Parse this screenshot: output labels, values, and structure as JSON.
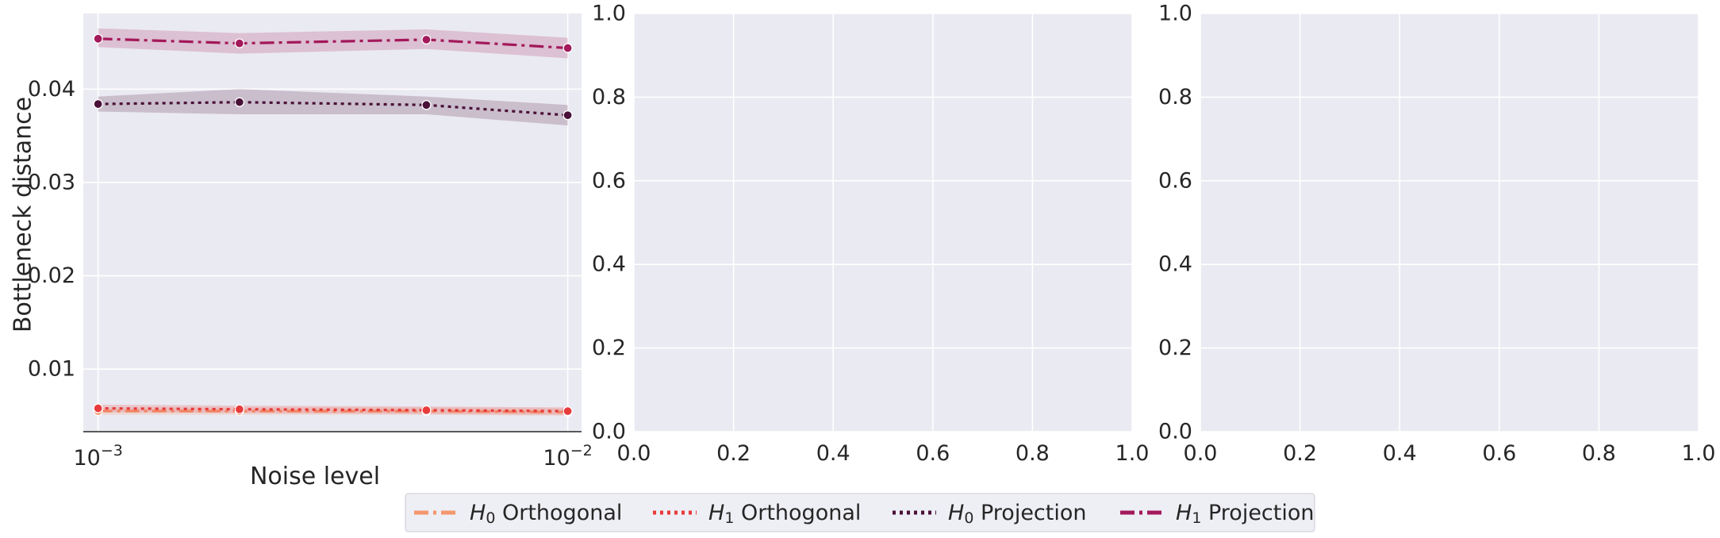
{
  "chart_data": [
    {
      "type": "line",
      "xscale": "log",
      "xlabel": "Noise level",
      "ylabel": "Bottleneck distance",
      "xlim": [
        0.00093,
        0.0107
      ],
      "ylim": [
        0.0033,
        0.0481
      ],
      "xticks": [
        0.001,
        0.01
      ],
      "xtick_base": "10",
      "xtick_exponents": [
        "−3",
        "−2"
      ],
      "yticks": [
        0.01,
        0.02,
        0.03,
        0.04
      ],
      "ytick_labels": [
        "0.01",
        "0.02",
        "0.03",
        "0.04"
      ],
      "grid": true,
      "x": [
        0.001,
        0.002,
        0.005,
        0.01
      ],
      "series": [
        {
          "name": "H_0 Orthogonal",
          "color": "#f4976c",
          "dash": "dashdot",
          "values": [
            0.0055,
            0.0055,
            0.0055,
            0.0054
          ],
          "ci": [
            [
              0.0051,
              0.0059
            ],
            [
              0.0051,
              0.0059
            ],
            [
              0.0051,
              0.0059
            ],
            [
              0.005,
              0.0058
            ]
          ]
        },
        {
          "name": "H_1 Orthogonal",
          "color": "#e83b3b",
          "dash": "dotted",
          "values": [
            0.0058,
            0.0057,
            0.0056,
            0.0055
          ],
          "ci": [
            [
              0.0054,
              0.0062
            ],
            [
              0.0053,
              0.0061
            ],
            [
              0.0052,
              0.006
            ],
            [
              0.0051,
              0.0059
            ]
          ]
        },
        {
          "name": "H_0 Projection",
          "color": "#4a1138",
          "dash": "dotted",
          "values": [
            0.0384,
            0.0386,
            0.0383,
            0.0372
          ],
          "ci": [
            [
              0.0376,
              0.0392
            ],
            [
              0.0373,
              0.04
            ],
            [
              0.0373,
              0.0392
            ],
            [
              0.0361,
              0.0383
            ]
          ]
        },
        {
          "name": "H_1 Projection",
          "color": "#a3195b",
          "dash": "dashdot",
          "values": [
            0.0454,
            0.0449,
            0.0453,
            0.0444
          ],
          "ci": [
            [
              0.0445,
              0.0465
            ],
            [
              0.0438,
              0.046
            ],
            [
              0.0443,
              0.0464
            ],
            [
              0.0433,
              0.0455
            ]
          ]
        }
      ]
    },
    {
      "type": "line",
      "xlim": [
        0,
        1
      ],
      "ylim": [
        0,
        1
      ],
      "xticks": [
        0,
        0.2,
        0.4,
        0.6,
        0.8,
        1.0
      ],
      "xtick_labels": [
        "0.0",
        "0.2",
        "0.4",
        "0.6",
        "0.8",
        "1.0"
      ],
      "yticks": [
        0,
        0.2,
        0.4,
        0.6,
        0.8,
        1.0
      ],
      "ytick_labels": [
        "0.0",
        "0.2",
        "0.4",
        "0.6",
        "0.8",
        "1.0"
      ],
      "grid": true,
      "series": []
    },
    {
      "type": "line",
      "xlim": [
        0,
        1
      ],
      "ylim": [
        0,
        1
      ],
      "xticks": [
        0,
        0.2,
        0.4,
        0.6,
        0.8,
        1.0
      ],
      "xtick_labels": [
        "0.0",
        "0.2",
        "0.4",
        "0.6",
        "0.8",
        "1.0"
      ],
      "yticks": [
        0,
        0.2,
        0.4,
        0.6,
        0.8,
        1.0
      ],
      "ytick_labels": [
        "0.0",
        "0.2",
        "0.4",
        "0.6",
        "0.8",
        "1.0"
      ],
      "grid": true,
      "series": []
    }
  ],
  "legend": {
    "placement": "bottom-center",
    "items": [
      {
        "var": "H",
        "sub": "0",
        "text": "Orthogonal",
        "color": "#f4976c",
        "dash": "dashdot"
      },
      {
        "var": "H",
        "sub": "1",
        "text": "Orthogonal",
        "color": "#e83b3b",
        "dash": "dotted"
      },
      {
        "var": "H",
        "sub": "0",
        "text": "Projection",
        "color": "#4a1138",
        "dash": "dotted"
      },
      {
        "var": "H",
        "sub": "1",
        "text": "Projection",
        "color": "#a3195b",
        "dash": "dashdot"
      }
    ]
  },
  "colors": {
    "axes_bg": "#eaeaf2",
    "grid": "#ffffff",
    "text": "#262626"
  }
}
